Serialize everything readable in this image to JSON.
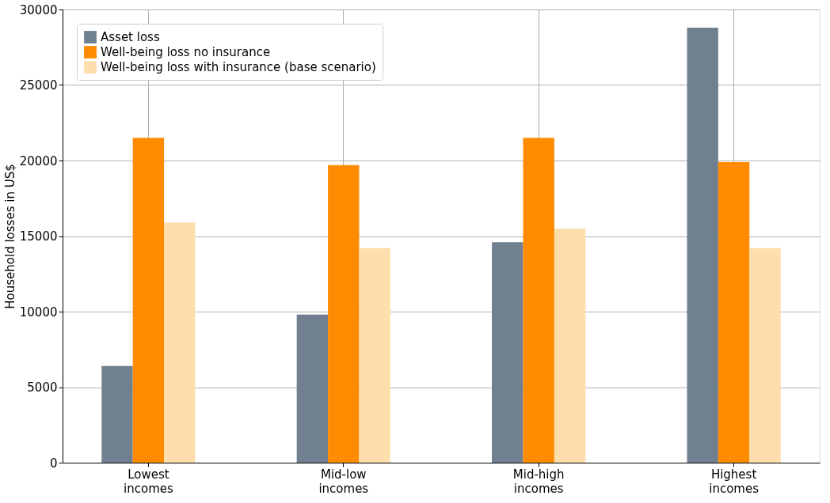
{
  "chart_data": {
    "type": "bar",
    "ylabel": "Household losses in US$",
    "categories": [
      "Lowest incomes",
      "Mid-low incomes",
      "Mid-high incomes",
      "Highest incomes"
    ],
    "series": [
      {
        "name": "Asset loss",
        "color": "#708090",
        "values": [
          6400,
          9800,
          14600,
          28800
        ]
      },
      {
        "name": "Well-being loss no insurance",
        "color": "#ff8c00",
        "values": [
          21500,
          19700,
          21500,
          19900
        ]
      },
      {
        "name": "Well-being loss with insurance (base scenario)",
        "color": "#ffdead",
        "values": [
          15900,
          14200,
          15500,
          14200
        ]
      }
    ],
    "ylim": [
      0,
      30000
    ],
    "yticks": [
      0,
      5000,
      10000,
      15000,
      20000,
      25000,
      30000
    ],
    "grid": true,
    "legend": "top left"
  }
}
